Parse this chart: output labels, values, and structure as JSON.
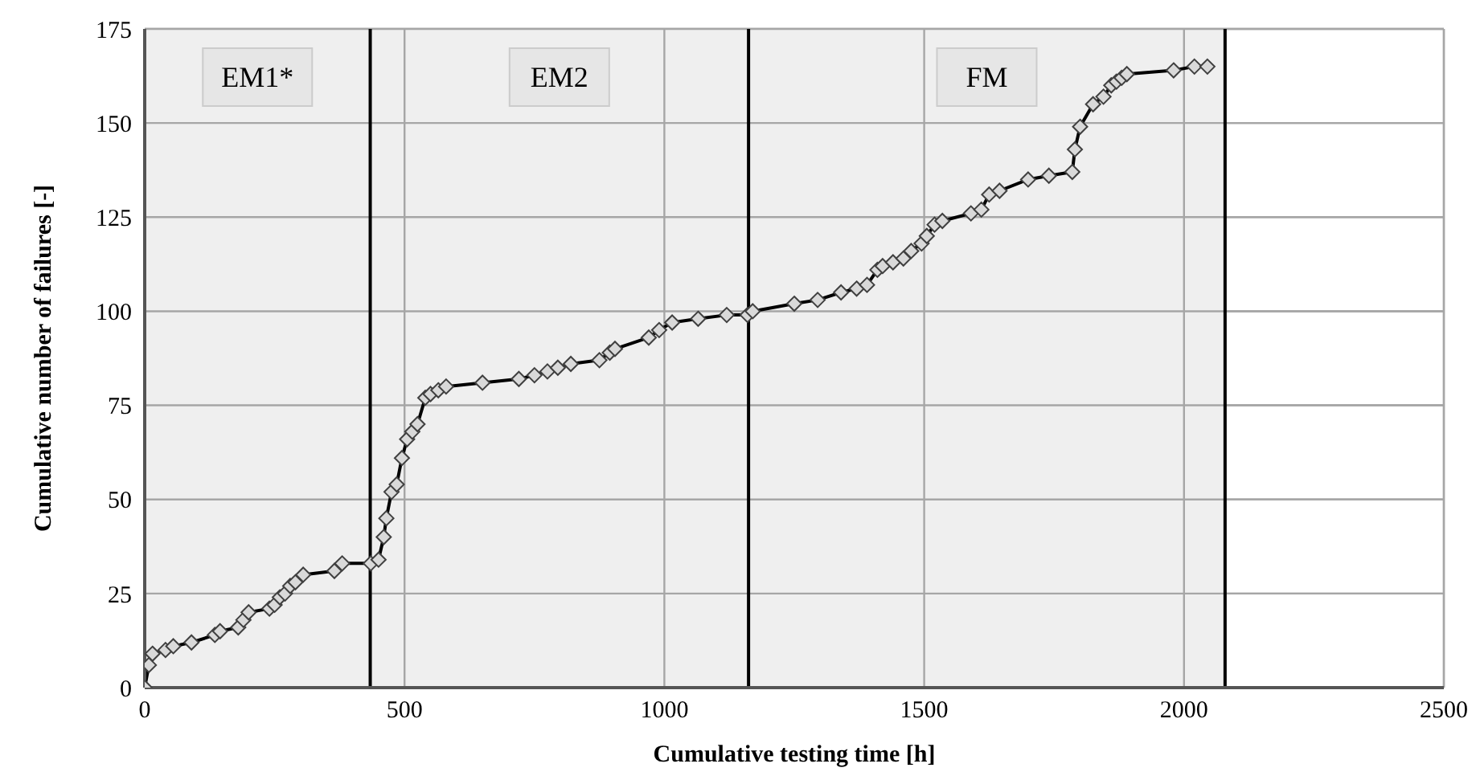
{
  "chart_data": {
    "type": "line",
    "xlabel": "Cumulative testing time [h]",
    "ylabel": "Cumulative number  of failures [-]",
    "x": [
      0,
      8,
      15,
      40,
      55,
      90,
      135,
      145,
      180,
      190,
      200,
      240,
      250,
      260,
      270,
      280,
      290,
      305,
      365,
      380,
      435,
      450,
      460,
      465,
      475,
      485,
      495,
      505,
      515,
      525,
      540,
      550,
      565,
      580,
      650,
      720,
      750,
      775,
      795,
      820,
      875,
      895,
      905,
      970,
      990,
      1015,
      1065,
      1120,
      1160,
      1170,
      1250,
      1295,
      1340,
      1370,
      1390,
      1410,
      1420,
      1440,
      1460,
      1475,
      1495,
      1505,
      1520,
      1535,
      1590,
      1610,
      1625,
      1645,
      1700,
      1740,
      1785,
      1790,
      1800,
      1825,
      1845,
      1860,
      1870,
      1880,
      1890,
      1980,
      2020,
      2045
    ],
    "series": [
      {
        "color": "#000000",
        "values": [
          0,
          6,
          9,
          10,
          11,
          12,
          14,
          15,
          16,
          18,
          20,
          21,
          22,
          24,
          25,
          27,
          28,
          30,
          31,
          33,
          33,
          34,
          40,
          45,
          52,
          54,
          61,
          66,
          68,
          70,
          77,
          78,
          79,
          80,
          81,
          82,
          83,
          84,
          85,
          86,
          87,
          89,
          90,
          93,
          95,
          97,
          98,
          99,
          99,
          100,
          102,
          103,
          105,
          106,
          107,
          111,
          112,
          113,
          114,
          116,
          118,
          120,
          123,
          124,
          126,
          127,
          131,
          132,
          135,
          136,
          137,
          143,
          149,
          155,
          157,
          160,
          161,
          162,
          163,
          164,
          165,
          165
        ]
      }
    ],
    "xlim": [
      0,
      2500
    ],
    "xticks": [
      0,
      500,
      1000,
      1500,
      2000,
      2500
    ],
    "ylim": [
      0,
      175
    ],
    "yticks": [
      0,
      25,
      50,
      75,
      100,
      125,
      150,
      175
    ],
    "grid": true,
    "marker": "diamond",
    "line_style": "solid",
    "bands": [
      {
        "axis": "x",
        "from": 0,
        "to": 434,
        "label": "EM1*",
        "color": "#efefef"
      },
      {
        "axis": "x",
        "from": 434,
        "to": 1162,
        "label": "EM2",
        "color": "#efefef"
      },
      {
        "axis": "x",
        "from": 1162,
        "to": 2079,
        "label": "FM",
        "color": "#efefef"
      }
    ],
    "ref_lines": [
      {
        "axis": "x",
        "value": 434,
        "color": "#000000"
      },
      {
        "axis": "x",
        "value": 1162,
        "color": "#000000"
      },
      {
        "axis": "x",
        "value": 2079,
        "color": "#000000"
      }
    ]
  }
}
